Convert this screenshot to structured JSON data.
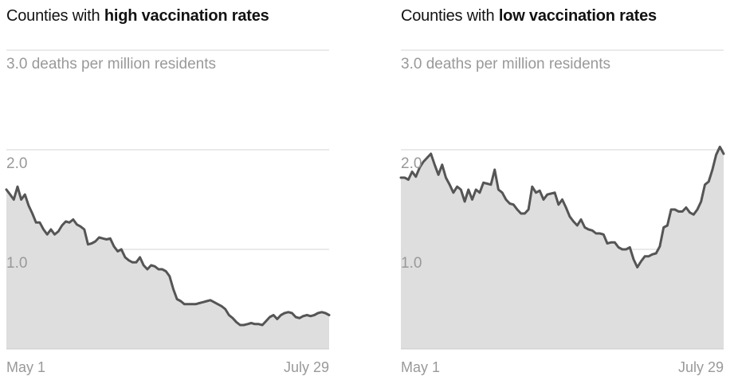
{
  "chart_data": [
    {
      "type": "area",
      "title_prefix": "Counties with ",
      "title_bold": "high vaccination rates",
      "y_unit": "deaths per million residents",
      "y_ticks": [
        {
          "value": 1.0,
          "label": "1.0"
        },
        {
          "value": 2.0,
          "label": "2.0"
        },
        {
          "value": 3.0,
          "label": "3.0 deaths per million residents"
        }
      ],
      "ylim": [
        0,
        3.0
      ],
      "x_labels": [
        {
          "position": "start",
          "label": "May 1"
        },
        {
          "position": "end",
          "label": "July 29"
        }
      ],
      "grid": true,
      "line_color": "#555555",
      "fill_color": "#dedede",
      "values": [
        1.6,
        1.55,
        1.5,
        1.63,
        1.5,
        1.55,
        1.44,
        1.36,
        1.27,
        1.27,
        1.2,
        1.15,
        1.2,
        1.15,
        1.18,
        1.24,
        1.28,
        1.27,
        1.3,
        1.25,
        1.23,
        1.2,
        1.05,
        1.06,
        1.08,
        1.12,
        1.11,
        1.1,
        1.11,
        1.03,
        0.98,
        1.0,
        0.92,
        0.89,
        0.87,
        0.87,
        0.92,
        0.84,
        0.8,
        0.84,
        0.83,
        0.8,
        0.8,
        0.78,
        0.73,
        0.6,
        0.5,
        0.48,
        0.45,
        0.45,
        0.45,
        0.45,
        0.46,
        0.47,
        0.48,
        0.49,
        0.47,
        0.45,
        0.43,
        0.4,
        0.34,
        0.31,
        0.27,
        0.24,
        0.24,
        0.25,
        0.26,
        0.25,
        0.25,
        0.24,
        0.28,
        0.32,
        0.34,
        0.3,
        0.34,
        0.36,
        0.37,
        0.36,
        0.32,
        0.31,
        0.33,
        0.34,
        0.33,
        0.34,
        0.36,
        0.37,
        0.36,
        0.34
      ]
    },
    {
      "type": "area",
      "title_prefix": "Counties with ",
      "title_bold": "low vaccination rates",
      "y_unit": "deaths per million residents",
      "y_ticks": [
        {
          "value": 1.0,
          "label": "1.0"
        },
        {
          "value": 2.0,
          "label": "2.0"
        },
        {
          "value": 3.0,
          "label": "3.0 deaths per million residents"
        }
      ],
      "ylim": [
        0,
        3.0
      ],
      "x_labels": [
        {
          "position": "start",
          "label": "May 1"
        },
        {
          "position": "end",
          "label": "July 29"
        }
      ],
      "grid": true,
      "line_color": "#555555",
      "fill_color": "#dedede",
      "values": [
        1.72,
        1.72,
        1.7,
        1.78,
        1.73,
        1.82,
        1.88,
        1.92,
        1.96,
        1.85,
        1.75,
        1.85,
        1.72,
        1.65,
        1.57,
        1.63,
        1.6,
        1.48,
        1.6,
        1.5,
        1.6,
        1.57,
        1.67,
        1.66,
        1.65,
        1.8,
        1.6,
        1.57,
        1.5,
        1.46,
        1.45,
        1.4,
        1.36,
        1.36,
        1.4,
        1.63,
        1.57,
        1.59,
        1.5,
        1.55,
        1.56,
        1.57,
        1.45,
        1.5,
        1.42,
        1.33,
        1.28,
        1.24,
        1.3,
        1.22,
        1.2,
        1.19,
        1.16,
        1.16,
        1.15,
        1.06,
        1.07,
        1.07,
        1.02,
        1.0,
        1.0,
        1.02,
        0.9,
        0.82,
        0.88,
        0.93,
        0.93,
        0.95,
        0.96,
        1.03,
        1.22,
        1.24,
        1.4,
        1.4,
        1.38,
        1.38,
        1.42,
        1.37,
        1.35,
        1.4,
        1.48,
        1.65,
        1.68,
        1.8,
        1.95,
        2.03,
        1.96
      ]
    }
  ]
}
